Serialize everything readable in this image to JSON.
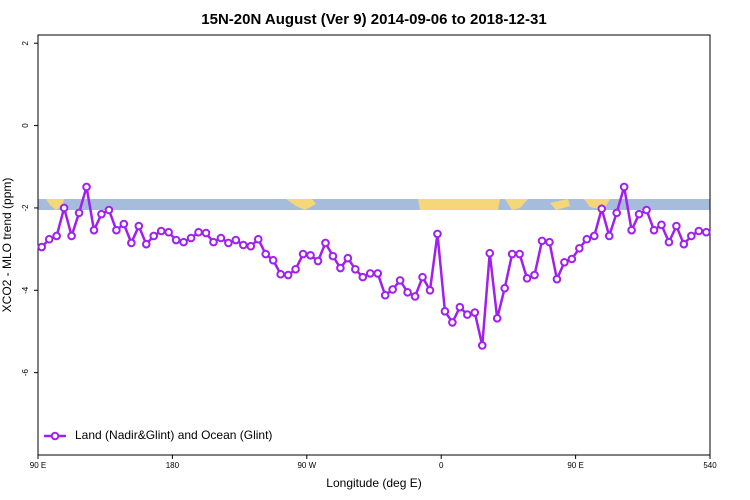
{
  "chart_data": {
    "type": "line",
    "title": "15N-20N August (Ver 9)   2014-09-06 to 2018-12-31",
    "x_label": "Longitude (deg E)",
    "y_label": "XCO2 - MLO trend (ppm)",
    "x": [
      92.5,
      97.5,
      102.5,
      107.5,
      112.5,
      117.5,
      122.5,
      127.5,
      132.5,
      137.5,
      142.5,
      147.5,
      152.5,
      157.5,
      162.5,
      167.5,
      172.5,
      177.5,
      182.5,
      187.5,
      192.5,
      197.5,
      202.5,
      207.5,
      212.5,
      217.5,
      222.5,
      227.5,
      232.5,
      237.5,
      242.5,
      247.5,
      252.5,
      257.5,
      262.5,
      267.5,
      272.5,
      277.5,
      282.5,
      287.5,
      292.5,
      297.5,
      302.5,
      307.5,
      312.5,
      317.5,
      322.5,
      327.5,
      332.5,
      337.5,
      342.5,
      347.5,
      352.5,
      357.5,
      362.5,
      367.5,
      372.5,
      377.5,
      382.5,
      387.5,
      392.5,
      397.5,
      402.5,
      407.5,
      412.5,
      417.5,
      422.5,
      427.5,
      432.5,
      437.5,
      442.5,
      447.5,
      452.5,
      457.5,
      462.5,
      467.5,
      472.5,
      477.5,
      482.5,
      487.5,
      492.5,
      497.5,
      502.5,
      507.5,
      512.5,
      517.5,
      522.5,
      527.5,
      532.5,
      537.5
    ],
    "series": [
      {
        "name": "Land (Nadir&Glint) and Ocean (Glint)",
        "color": "#a020f0",
        "values": [
          -2.95,
          -2.76,
          -2.68,
          -2.0,
          -2.68,
          -2.12,
          -1.49,
          -2.54,
          -2.15,
          -2.05,
          -2.54,
          -2.39,
          -2.85,
          -2.44,
          -2.88,
          -2.68,
          -2.56,
          -2.59,
          -2.78,
          -2.83,
          -2.73,
          -2.59,
          -2.61,
          -2.83,
          -2.73,
          -2.85,
          -2.78,
          -2.9,
          -2.93,
          -2.76,
          -3.12,
          -3.27,
          -3.61,
          -3.63,
          -3.49,
          -3.12,
          -3.15,
          -3.29,
          -2.85,
          -3.17,
          -3.46,
          -3.22,
          -3.49,
          -3.68,
          -3.59,
          -3.59,
          -4.12,
          -3.98,
          -3.76,
          -4.05,
          -4.15,
          -3.68,
          -4.0,
          -2.63,
          -4.51,
          -4.78,
          -4.41,
          -4.59,
          -4.54,
          -5.34,
          -3.1,
          -4.68,
          -3.95,
          -3.12,
          -3.12,
          -3.71,
          -3.63,
          -2.8,
          -2.83,
          -3.73,
          -3.32,
          -3.24,
          -2.98,
          -2.76,
          -2.68,
          -2.02,
          -2.68,
          -2.12,
          -1.49,
          -2.54,
          -2.15,
          -2.05,
          -2.54,
          -2.41,
          -2.83,
          -2.44,
          -2.88,
          -2.68,
          -2.56,
          -2.59
        ]
      }
    ],
    "xlim": [
      90,
      540
    ],
    "xticks": [
      {
        "value": 90,
        "label": "90 E"
      },
      180,
      {
        "value": 270,
        "label": "90 W"
      },
      {
        "value": 360,
        "label": "0"
      },
      {
        "value": 450,
        "label": "90 E"
      },
      540
    ],
    "ylim": [
      -8,
      2.2
    ],
    "yticks": [
      2,
      0,
      -2,
      -4,
      -6
    ],
    "legend": "bottom-left"
  }
}
